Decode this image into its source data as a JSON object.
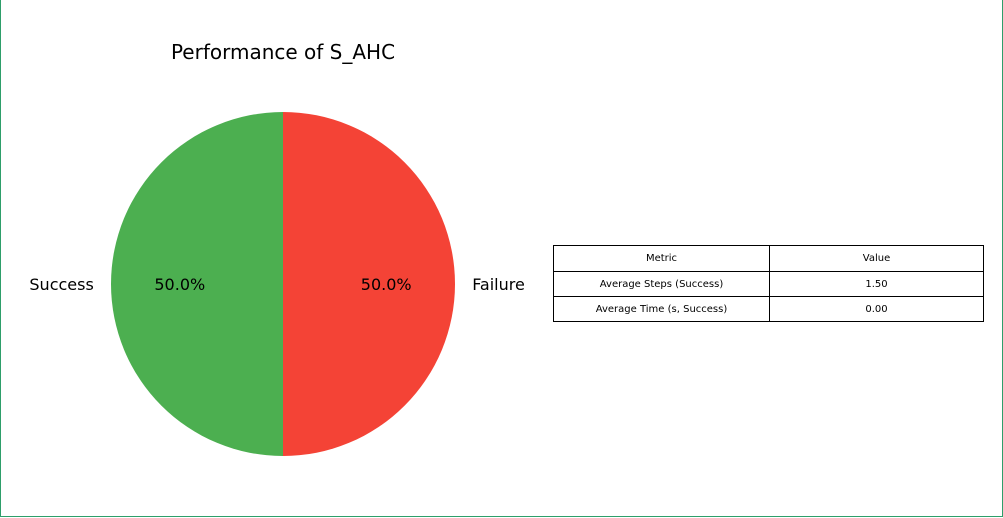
{
  "chart_data": {
    "type": "pie",
    "title": "Performance of S_AHC",
    "slices": [
      {
        "label": "Success",
        "value": 50.0,
        "pct_label": "50.0%",
        "color": "#4caf50"
      },
      {
        "label": "Failure",
        "value": 50.0,
        "pct_label": "50.0%",
        "color": "#f44336"
      }
    ],
    "start_angle_deg": 90,
    "direction": "counterclockwise"
  },
  "table": {
    "headers": [
      "Metric",
      "Value"
    ],
    "rows": [
      [
        "Average Steps (Success)",
        "1.50"
      ],
      [
        "Average Time (s, Success)",
        "0.00"
      ]
    ]
  }
}
